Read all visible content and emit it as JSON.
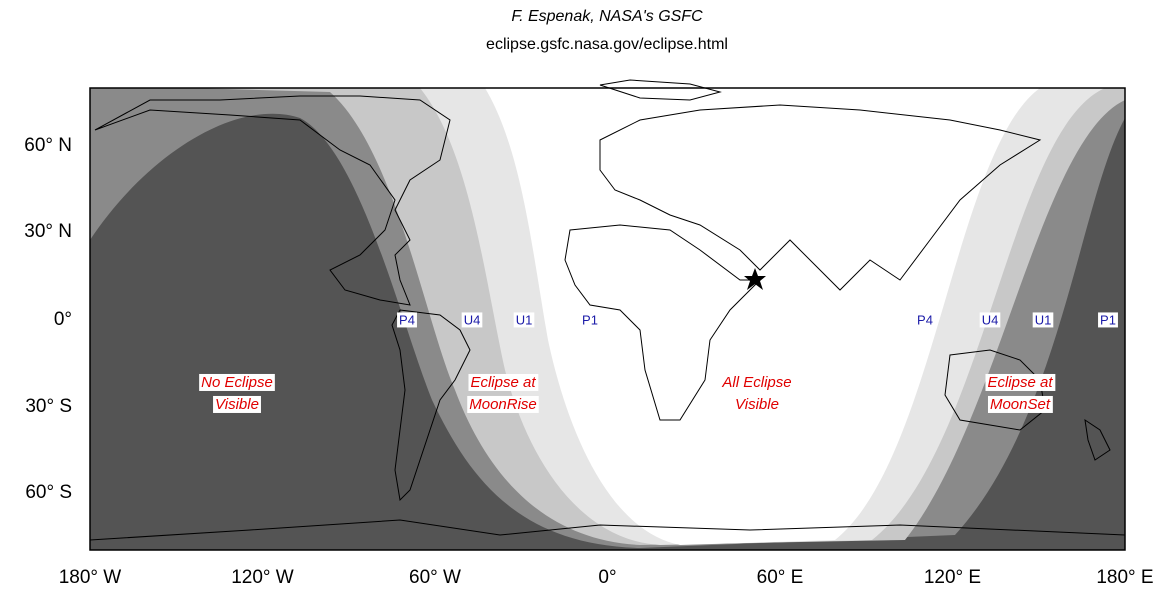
{
  "header": {
    "author": "F. Espenak, NASA's GSFC",
    "url": "eclipse.gsfc.nasa.gov/eclipse.html"
  },
  "map": {
    "y_axis_labels": [
      "60° N",
      "30° N",
      "0°",
      "30° S",
      "60° S"
    ],
    "x_axis_labels": [
      "180° W",
      "120° W",
      "60° W",
      "0°",
      "60° E",
      "120° E",
      "180° E"
    ],
    "regions": [
      {
        "lines": [
          "No Eclipse",
          "Visible"
        ]
      },
      {
        "lines": [
          "Eclipse at",
          "MoonRise"
        ]
      },
      {
        "lines": [
          "All Eclipse",
          "Visible"
        ]
      },
      {
        "lines": [
          "Eclipse at",
          "MoonSet"
        ]
      }
    ],
    "contacts": [
      "P4",
      "U4",
      "U1",
      "P1",
      "P4",
      "U4",
      "U1",
      "P1"
    ]
  }
}
